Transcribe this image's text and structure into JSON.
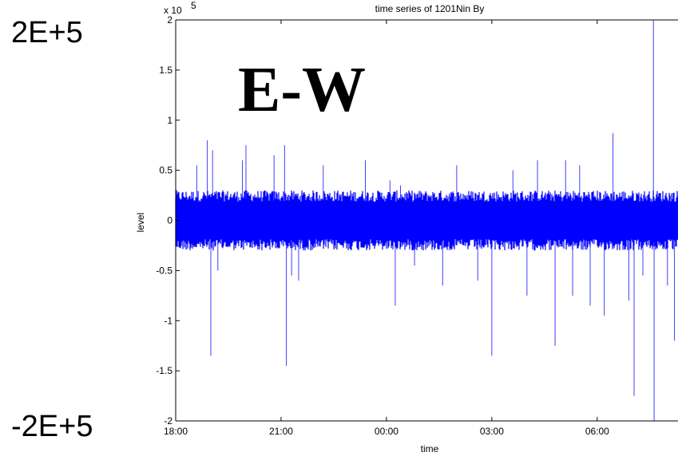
{
  "side_labels": {
    "top": "2E+5",
    "bottom": "-2E+5"
  },
  "overlay_title": "E-W",
  "chart_data": {
    "type": "line",
    "title": "time series of 1201Nin By",
    "xlabel": "time",
    "ylabel": "level",
    "exponent_label": "x 10",
    "exponent_power": "5",
    "ylim": [
      -200000,
      200000
    ],
    "yticks": [
      -200000,
      -150000,
      -100000,
      -50000,
      0,
      50000,
      100000,
      150000,
      200000
    ],
    "ytick_labels": [
      "-2",
      "-1.5",
      "-1",
      "-0.5",
      "0",
      "0.5",
      "1",
      "1.5",
      "2"
    ],
    "xlim_hours": [
      0,
      14.3
    ],
    "xticks_hours": [
      0,
      3,
      6,
      9,
      12
    ],
    "xtick_labels": [
      "18:00",
      "21:00",
      "00:00",
      "03:00",
      "06:00"
    ],
    "series": [
      {
        "color": "#0000ff",
        "background_band": [
          -25000,
          25000
        ],
        "spikes": [
          [
            0.6,
            55000
          ],
          [
            0.9,
            80000
          ],
          [
            1.0,
            -135000
          ],
          [
            1.05,
            70000
          ],
          [
            1.2,
            -50000
          ],
          [
            1.9,
            60000
          ],
          [
            2.0,
            75000
          ],
          [
            2.8,
            65000
          ],
          [
            3.1,
            75000
          ],
          [
            3.15,
            -145000
          ],
          [
            3.3,
            -55000
          ],
          [
            3.5,
            -60000
          ],
          [
            4.2,
            55000
          ],
          [
            5.4,
            60000
          ],
          [
            6.1,
            40000
          ],
          [
            6.25,
            -85000
          ],
          [
            6.4,
            35000
          ],
          [
            6.8,
            -45000
          ],
          [
            7.6,
            -65000
          ],
          [
            8.0,
            55000
          ],
          [
            8.6,
            -60000
          ],
          [
            9.0,
            -135000
          ],
          [
            9.6,
            50000
          ],
          [
            10.0,
            -75000
          ],
          [
            10.3,
            60000
          ],
          [
            10.8,
            -125000
          ],
          [
            11.1,
            60000
          ],
          [
            11.3,
            -75000
          ],
          [
            11.5,
            55000
          ],
          [
            11.8,
            -85000
          ],
          [
            12.2,
            -95000
          ],
          [
            12.45,
            87000
          ],
          [
            12.9,
            -80000
          ],
          [
            13.05,
            -175000
          ],
          [
            13.3,
            -55000
          ],
          [
            13.6,
            200000
          ],
          [
            13.62,
            -200000
          ],
          [
            14.0,
            -65000
          ],
          [
            14.2,
            -120000
          ]
        ]
      }
    ]
  }
}
